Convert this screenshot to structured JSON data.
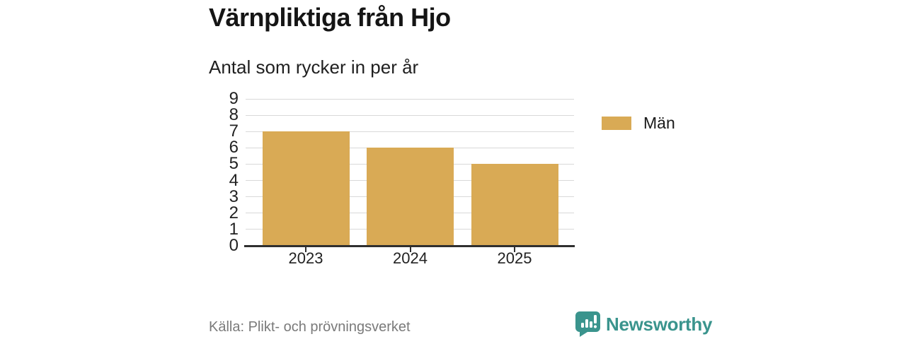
{
  "header": {
    "title": "Värnpliktiga från Hjo",
    "subtitle": "Antal som rycker in per år"
  },
  "chart_data": {
    "type": "bar",
    "title": "Värnpliktiga från Hjo",
    "subtitle": "Antal som rycker in per år",
    "categories": [
      "2023",
      "2024",
      "2025"
    ],
    "series": [
      {
        "name": "Män",
        "values": [
          7,
          6,
          5
        ],
        "color": "#d9aa55"
      }
    ],
    "xlabel": "",
    "ylabel": "",
    "ylim": [
      0,
      9
    ],
    "yticks": [
      0,
      1,
      2,
      3,
      4,
      5,
      6,
      7,
      8,
      9
    ],
    "grid": true,
    "legend_position": "right"
  },
  "legend": {
    "items": [
      {
        "label": "Män",
        "color": "#d9aa55"
      }
    ]
  },
  "footer": {
    "source": "Källa: Plikt- och prövningsverket",
    "brand_name": "Newsworthy"
  },
  "colors": {
    "bar": "#d9aa55",
    "brand_teal": "#3a948d",
    "grid": "#d9d9d9",
    "axis": "#2f2f2f",
    "title_text": "#151515",
    "tick_text": "#222222",
    "source_text": "#7a7a7a"
  }
}
